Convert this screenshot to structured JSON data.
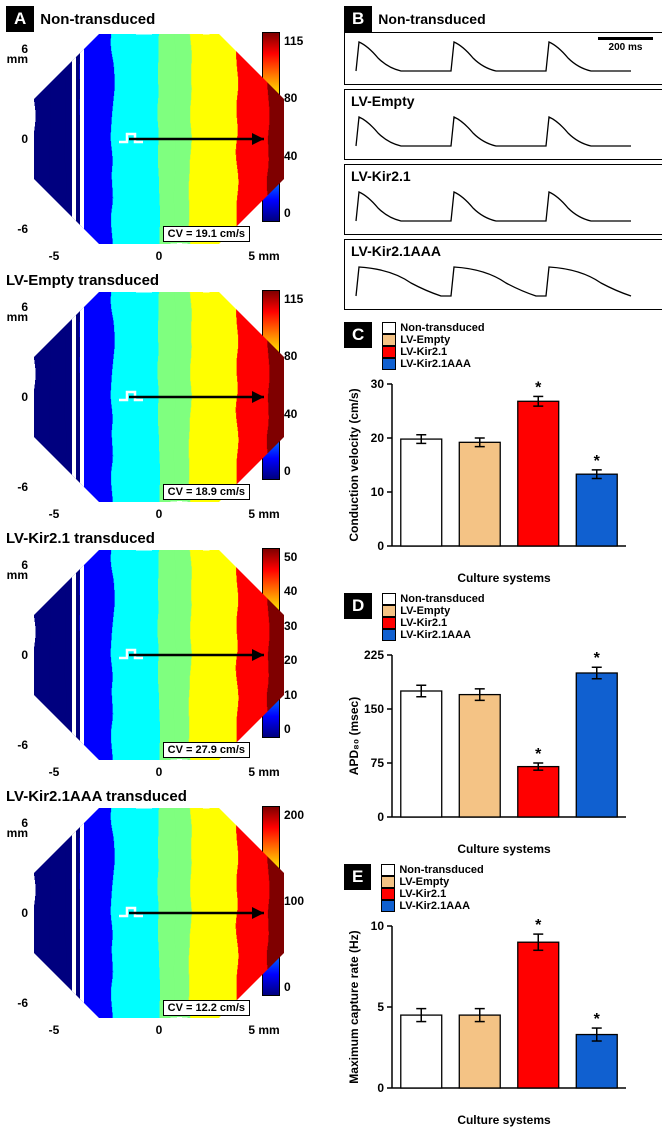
{
  "colors": {
    "non_transduced": "#ffffff",
    "lv_empty": "#f4c385",
    "lv_kir21": "#ff0000",
    "lv_kir21aaa": "#1060d0"
  },
  "heatmaps": [
    {
      "title": "Non-transduced",
      "cv_label": "CV = 19.1 cm/s",
      "colorbar_ticks": [
        "115",
        "80",
        "40",
        "0"
      ],
      "x_ticks": [
        "-5",
        "0",
        "5 mm"
      ],
      "y_ticks": [
        "6",
        "0",
        "-6"
      ],
      "y_unit": "mm"
    },
    {
      "title": "LV-Empty transduced",
      "cv_label": "CV = 18.9 cm/s",
      "colorbar_ticks": [
        "115",
        "80",
        "40",
        "0"
      ],
      "x_ticks": [
        "-5",
        "0",
        "5 mm"
      ],
      "y_ticks": [
        "6",
        "0",
        "-6"
      ],
      "y_unit": "mm"
    },
    {
      "title": "LV-Kir2.1 transduced",
      "cv_label": "CV = 27.9 cm/s",
      "colorbar_ticks": [
        "50",
        "40",
        "30",
        "20",
        "10",
        "0"
      ],
      "x_ticks": [
        "-5",
        "0",
        "5 mm"
      ],
      "y_ticks": [
        "6",
        "0",
        "-6"
      ],
      "y_unit": "mm"
    },
    {
      "title": "LV-Kir2.1AAA transduced",
      "cv_label": "CV = 12.2 cm/s",
      "colorbar_ticks": [
        "200",
        "100",
        "0"
      ],
      "x_ticks": [
        "-5",
        "0",
        "5 mm"
      ],
      "y_ticks": [
        "6",
        "0",
        "-6"
      ],
      "y_unit": "mm"
    }
  ],
  "traces": {
    "scalebar": "200 ms",
    "rows": [
      {
        "title": "Non-transduced"
      },
      {
        "title": "LV-Empty"
      },
      {
        "title": "LV-Kir2.1"
      },
      {
        "title": "LV-Kir2.1AAA"
      }
    ]
  },
  "legend_items": [
    {
      "label": "Non-transduced",
      "color_key": "non_transduced"
    },
    {
      "label": "LV-Empty",
      "color_key": "lv_empty"
    },
    {
      "label": "LV-Kir2.1",
      "color_key": "lv_kir21"
    },
    {
      "label": "LV-Kir2.1AAA",
      "color_key": "lv_kir21aaa"
    }
  ],
  "barcharts": {
    "C": {
      "ylabel": "Conduction velocity (cm/s)",
      "xlabel": "Culture systems",
      "ymax": 30,
      "ytick_step": 10,
      "bars": [
        {
          "label": "Non-transduced",
          "value": 19.8,
          "err": 0.8,
          "sig": false,
          "color_key": "non_transduced"
        },
        {
          "label": "LV-Empty",
          "value": 19.2,
          "err": 0.8,
          "sig": false,
          "color_key": "lv_empty"
        },
        {
          "label": "LV-Kir2.1",
          "value": 26.8,
          "err": 0.9,
          "sig": true,
          "color_key": "lv_kir21"
        },
        {
          "label": "LV-Kir2.1AAA",
          "value": 13.3,
          "err": 0.8,
          "sig": true,
          "color_key": "lv_kir21aaa"
        }
      ]
    },
    "D": {
      "ylabel": "APD₈₀ (msec)",
      "xlabel": "Culture systems",
      "ymax": 225,
      "ytick_step": 75,
      "bars": [
        {
          "label": "Non-transduced",
          "value": 175,
          "err": 8,
          "sig": false,
          "color_key": "non_transduced"
        },
        {
          "label": "LV-Empty",
          "value": 170,
          "err": 8,
          "sig": false,
          "color_key": "lv_empty"
        },
        {
          "label": "LV-Kir2.1",
          "value": 70,
          "err": 5,
          "sig": true,
          "color_key": "lv_kir21"
        },
        {
          "label": "LV-Kir2.1AAA",
          "value": 200,
          "err": 8,
          "sig": true,
          "color_key": "lv_kir21aaa"
        }
      ]
    },
    "E": {
      "ylabel": "Maximum capture rate (Hz)",
      "xlabel": "Culture systems",
      "ymax": 10,
      "ytick_step": 5,
      "bars": [
        {
          "label": "Non-transduced",
          "value": 4.5,
          "err": 0.4,
          "sig": false,
          "color_key": "non_transduced"
        },
        {
          "label": "LV-Empty",
          "value": 4.5,
          "err": 0.4,
          "sig": false,
          "color_key": "lv_empty"
        },
        {
          "label": "LV-Kir2.1",
          "value": 9.0,
          "err": 0.5,
          "sig": true,
          "color_key": "lv_kir21"
        },
        {
          "label": "LV-Kir2.1AAA",
          "value": 3.3,
          "err": 0.4,
          "sig": true,
          "color_key": "lv_kir21aaa"
        }
      ]
    }
  },
  "panel_labels": {
    "A": "A",
    "B": "B",
    "C": "C",
    "D": "D",
    "E": "E"
  },
  "jet_stops": [
    {
      "o": 0.0,
      "c": "#00007f"
    },
    {
      "o": 0.11,
      "c": "#0000ff"
    },
    {
      "o": 0.34,
      "c": "#00ffff"
    },
    {
      "o": 0.5,
      "c": "#7fff7f"
    },
    {
      "o": 0.65,
      "c": "#ffff00"
    },
    {
      "o": 0.89,
      "c": "#ff0000"
    },
    {
      "o": 1.0,
      "c": "#7f0000"
    }
  ]
}
